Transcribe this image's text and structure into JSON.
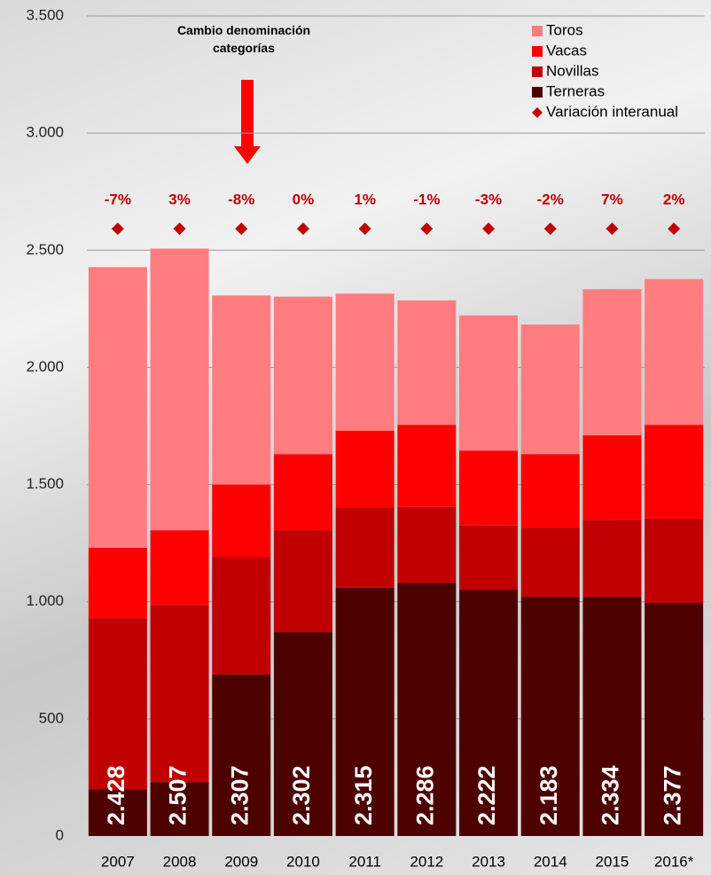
{
  "chart_data": {
    "type": "stacked-bar",
    "categories": [
      "2007",
      "2008",
      "2009",
      "2010",
      "2011",
      "2012",
      "2013",
      "2014",
      "2015",
      "2016*"
    ],
    "series": [
      {
        "name": "Terneras",
        "color": "#4d0000",
        "values": [
          200,
          230,
          690,
          870,
          1060,
          1080,
          1050,
          1020,
          1020,
          995
        ]
      },
      {
        "name": "Novillas",
        "color": "#c00000",
        "values": [
          730,
          755,
          500,
          435,
          340,
          325,
          275,
          295,
          330,
          360
        ]
      },
      {
        "name": "Vacas",
        "color": "#ff0000",
        "values": [
          300,
          320,
          310,
          325,
          330,
          350,
          320,
          315,
          360,
          400
        ]
      },
      {
        "name": "Toros",
        "color": "#ff7c80",
        "values": [
          1198,
          1202,
          807,
          672,
          585,
          531,
          577,
          553,
          624,
          622
        ]
      }
    ],
    "totals": {
      "values": [
        2428,
        2507,
        2307,
        2302,
        2315,
        2286,
        2222,
        2183,
        2334,
        2377
      ],
      "value_labels": [
        "2.428",
        "2.507",
        "2.307",
        "2.302",
        "2.315",
        "2.286",
        "2.222",
        "2.183",
        "2.334",
        "2.377"
      ]
    },
    "variation": {
      "name": "Variación interanual",
      "color": "#c00000",
      "values": [
        -7,
        3,
        -8,
        0,
        1,
        -1,
        -3,
        -2,
        7,
        2
      ],
      "value_labels": [
        "-7%",
        "3%",
        "-8%",
        "0%",
        "1%",
        "-1%",
        "-3%",
        "-2%",
        "7%",
        "2%"
      ]
    },
    "annotation": "Cambio denominación categorías",
    "ylim": [
      0,
      3500
    ],
    "yticks": [
      0,
      500,
      {
        "value": 1000,
        "label": "1.000"
      },
      {
        "value": 1500,
        "label": "1.500"
      },
      {
        "value": 2000,
        "label": "2.000"
      },
      {
        "value": 2500,
        "label": "2.500"
      },
      {
        "value": 3000,
        "label": "3.000"
      },
      {
        "value": 3500,
        "label": "3.500"
      }
    ],
    "grid": true,
    "legend": "top-right"
  }
}
